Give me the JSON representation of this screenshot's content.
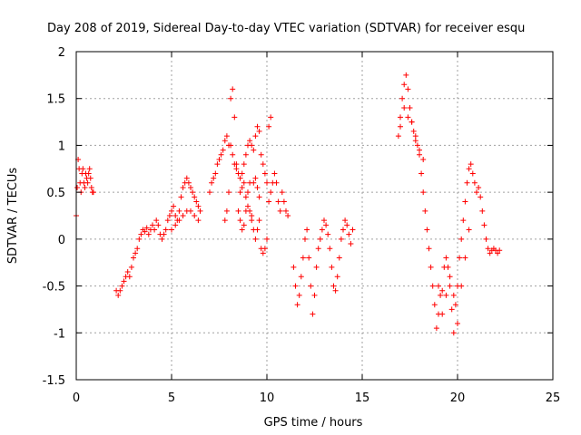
{
  "chart_data": {
    "type": "scatter",
    "title": "Day 208 of 2019, Sidereal Day-to-day VTEC variation (SDTVAR) for receiver esqu",
    "xlabel": "GPS time / hours",
    "ylabel": "SDTVAR / TECUs",
    "xlim": [
      0,
      25
    ],
    "ylim": [
      -1.5,
      2
    ],
    "x_ticks": [
      0,
      5,
      10,
      15,
      20,
      25
    ],
    "x_tick_labels": [
      "0",
      "5",
      "10",
      "15",
      "20",
      "25"
    ],
    "y_ticks": [
      -1.5,
      -1,
      -0.5,
      0,
      0.5,
      1,
      1.5,
      2
    ],
    "y_tick_labels": [
      "-1.5",
      "-1",
      "-0.5",
      "0",
      "0.5",
      "1",
      "1.5",
      "2"
    ],
    "grid": true,
    "marker": "+",
    "color": "#ff0000",
    "series": [
      {
        "name": "SDTVAR",
        "x": [
          0.0,
          0.05,
          0.1,
          0.15,
          0.2,
          0.25,
          0.3,
          0.35,
          0.4,
          0.45,
          0.5,
          0.55,
          0.6,
          0.65,
          0.7,
          0.75,
          0.8,
          0.85,
          0.9,
          2.1,
          2.2,
          2.3,
          2.4,
          2.5,
          2.6,
          2.7,
          2.8,
          2.9,
          3.0,
          3.1,
          3.2,
          3.3,
          3.4,
          3.5,
          3.6,
          3.7,
          3.8,
          3.9,
          4.0,
          4.1,
          4.2,
          4.3,
          4.4,
          4.5,
          4.6,
          4.7,
          4.8,
          4.9,
          5.0,
          5.1,
          5.2,
          5.3,
          5.4,
          5.5,
          5.6,
          5.7,
          5.8,
          5.9,
          6.0,
          6.1,
          6.2,
          6.3,
          6.4,
          6.5,
          5.0,
          5.2,
          5.4,
          5.6,
          5.8,
          6.0,
          6.2,
          6.4,
          7.0,
          7.1,
          7.2,
          7.3,
          7.4,
          7.5,
          7.6,
          7.7,
          7.8,
          7.9,
          8.0,
          8.1,
          8.2,
          8.3,
          8.4,
          8.5,
          8.6,
          8.7,
          8.8,
          8.9,
          9.0,
          9.1,
          9.2,
          9.3,
          9.4,
          9.5,
          9.6,
          9.7,
          9.8,
          9.9,
          10.0,
          7.8,
          7.9,
          8.0,
          8.1,
          8.2,
          8.3,
          8.4,
          8.5,
          8.6,
          8.7,
          8.8,
          8.9,
          9.0,
          9.1,
          9.2,
          9.3,
          9.4,
          9.5,
          9.6,
          9.7,
          9.8,
          9.9,
          10.0,
          10.1,
          10.2,
          8.6,
          8.7,
          8.8,
          8.9,
          9.0,
          9.1,
          9.2,
          9.3,
          9.4,
          9.5,
          9.6,
          10.1,
          10.2,
          10.3,
          10.4,
          10.5,
          10.6,
          10.7,
          10.8,
          10.9,
          11.0,
          11.1,
          11.4,
          11.5,
          11.6,
          11.7,
          11.8,
          11.9,
          12.0,
          12.1,
          12.2,
          12.3,
          12.4,
          12.5,
          12.6,
          12.7,
          12.8,
          12.9,
          13.0,
          13.1,
          13.2,
          13.3,
          13.4,
          13.5,
          13.6,
          13.7,
          13.8,
          13.9,
          14.0,
          14.1,
          14.2,
          14.3,
          14.4,
          14.5,
          16.9,
          17.0,
          17.1,
          17.2,
          17.3,
          17.4,
          17.5,
          17.6,
          17.7,
          17.8,
          17.9,
          18.0,
          18.1,
          18.2,
          18.3,
          18.4,
          18.5,
          18.6,
          18.7,
          18.8,
          18.9,
          19.0,
          19.1,
          19.2,
          19.3,
          19.4,
          19.5,
          19.6,
          19.7,
          19.8,
          19.9,
          20.0,
          20.1,
          20.2,
          20.3,
          20.4,
          20.5,
          20.6,
          20.7,
          20.8,
          20.9,
          21.0,
          21.1,
          21.2,
          21.3,
          21.4,
          21.5,
          21.6,
          21.7,
          21.8,
          21.9,
          22.0,
          22.1,
          22.2,
          17.0,
          17.2,
          17.4,
          17.6,
          17.8,
          18.0,
          18.2,
          19.0,
          19.2,
          19.4,
          19.6,
          19.8,
          20.0,
          20.2,
          20.4,
          20.6
        ],
        "y": [
          0.25,
          0.55,
          0.85,
          0.75,
          0.6,
          0.5,
          0.7,
          0.75,
          0.6,
          0.55,
          0.7,
          0.65,
          0.6,
          0.7,
          0.75,
          0.65,
          0.55,
          0.5,
          0.5,
          -0.55,
          -0.6,
          -0.55,
          -0.5,
          -0.45,
          -0.4,
          -0.35,
          -0.4,
          -0.3,
          -0.2,
          -0.15,
          -0.1,
          0.0,
          0.05,
          0.1,
          0.08,
          0.12,
          0.05,
          0.1,
          0.15,
          0.1,
          0.2,
          0.15,
          0.05,
          0.0,
          0.05,
          0.1,
          0.2,
          0.25,
          0.3,
          0.35,
          0.25,
          0.2,
          0.3,
          0.45,
          0.55,
          0.6,
          0.65,
          0.6,
          0.55,
          0.5,
          0.45,
          0.4,
          0.35,
          0.3,
          0.1,
          0.15,
          0.2,
          0.25,
          0.3,
          0.3,
          0.25,
          0.2,
          0.5,
          0.6,
          0.65,
          0.7,
          0.8,
          0.85,
          0.9,
          0.95,
          1.05,
          1.1,
          1.0,
          1.0,
          0.9,
          0.8,
          0.75,
          0.7,
          0.65,
          0.7,
          0.8,
          0.9,
          1.0,
          1.05,
          1.0,
          0.95,
          1.1,
          1.2,
          1.15,
          0.9,
          0.8,
          0.7,
          0.6,
          0.2,
          0.3,
          0.5,
          1.5,
          1.6,
          1.3,
          0.8,
          0.3,
          0.2,
          0.1,
          0.15,
          0.3,
          0.5,
          0.6,
          0.2,
          0.1,
          0.0,
          0.1,
          0.2,
          -0.1,
          -0.15,
          -0.1,
          0.0,
          1.2,
          1.3,
          0.5,
          0.55,
          0.6,
          0.45,
          0.35,
          0.3,
          0.25,
          0.6,
          0.65,
          0.55,
          0.45,
          0.4,
          0.5,
          0.6,
          0.7,
          0.6,
          0.4,
          0.3,
          0.5,
          0.4,
          0.3,
          0.25,
          -0.3,
          -0.5,
          -0.7,
          -0.6,
          -0.4,
          -0.2,
          0.0,
          0.1,
          -0.2,
          -0.5,
          -0.8,
          -0.6,
          -0.3,
          -0.1,
          0.0,
          0.1,
          0.2,
          0.15,
          0.05,
          -0.1,
          -0.3,
          -0.5,
          -0.55,
          -0.4,
          -0.2,
          0.0,
          0.1,
          0.2,
          0.15,
          0.05,
          -0.05,
          0.1,
          1.1,
          1.3,
          1.5,
          1.65,
          1.75,
          1.6,
          1.4,
          1.25,
          1.15,
          1.05,
          1.0,
          0.9,
          0.7,
          0.5,
          0.3,
          0.1,
          -0.1,
          -0.3,
          -0.5,
          -0.7,
          -0.95,
          -0.8,
          -0.6,
          -0.55,
          -0.3,
          -0.2,
          -0.3,
          -0.5,
          -0.75,
          -1.0,
          -0.7,
          -0.5,
          -0.2,
          0.0,
          0.2,
          0.4,
          0.6,
          0.75,
          0.8,
          0.7,
          0.6,
          0.5,
          0.55,
          0.45,
          0.3,
          0.15,
          0.0,
          -0.1,
          -0.15,
          -0.12,
          -0.1,
          -0.12,
          -0.15,
          -0.12,
          1.2,
          1.4,
          1.3,
          1.25,
          1.1,
          0.95,
          0.85,
          -0.5,
          -0.8,
          -0.6,
          -0.4,
          -0.6,
          -0.9,
          -0.5,
          -0.2,
          0.1
        ]
      }
    ]
  }
}
